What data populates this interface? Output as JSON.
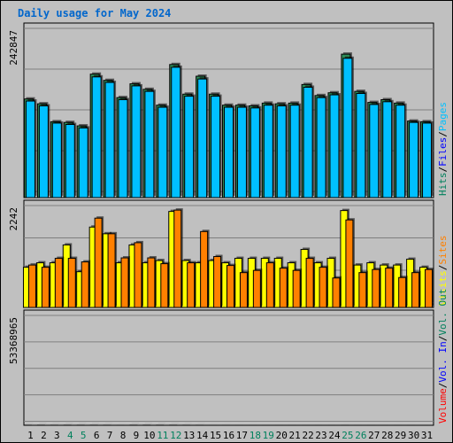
{
  "title": "Daily usage for May 2024",
  "colors": {
    "background": "#c0c0c0",
    "title": "#0066cc",
    "hits": "#00805c",
    "files": "#0000ff",
    "pages": "#00c0ff",
    "visits": "#ffff00",
    "sites": "#ff8000",
    "volume": "#ff0000",
    "weekend": "#00805c",
    "weekday": "#000000"
  },
  "chart_data": [
    {
      "type": "bar",
      "panel": "top",
      "max_label": "242847",
      "ylim": [
        0,
        242847
      ],
      "legend": [
        "Hits",
        "/",
        "Files",
        "/",
        "Pages"
      ],
      "x": [
        "1",
        "2",
        "3",
        "4",
        "5",
        "6",
        "7",
        "8",
        "9",
        "10",
        "11",
        "12",
        "13",
        "14",
        "15",
        "16",
        "17",
        "18",
        "19",
        "20",
        "21",
        "22",
        "23",
        "24",
        "25",
        "26",
        "27",
        "28",
        "29",
        "30",
        "31"
      ],
      "series": [
        {
          "name": "Hits",
          "values": [
            143000,
            136000,
            110000,
            109000,
            104000,
            179000,
            170000,
            145000,
            165000,
            157000,
            134000,
            193000,
            150000,
            176000,
            150000,
            134000,
            134000,
            133000,
            137000,
            136000,
            137000,
            164000,
            148000,
            152000,
            208000,
            154000,
            138000,
            142000,
            137000,
            111000,
            110000
          ]
        },
        {
          "name": "Files",
          "values": [
            140000,
            133000,
            108000,
            106000,
            101000,
            175000,
            167000,
            142000,
            162000,
            154000,
            131000,
            189000,
            147000,
            172000,
            147000,
            131000,
            131000,
            130000,
            134000,
            133000,
            134000,
            160000,
            145000,
            149000,
            202000,
            151000,
            135000,
            139000,
            134000,
            109000,
            108000
          ]
        }
      ]
    },
    {
      "type": "bar",
      "panel": "middle",
      "max_label": "2242",
      "ylim": [
        0,
        2242
      ],
      "legend": [
        "Visits",
        "/",
        "Sites"
      ],
      "x": [
        "1",
        "2",
        "3",
        "4",
        "5",
        "6",
        "7",
        "8",
        "9",
        "10",
        "11",
        "12",
        "13",
        "14",
        "15",
        "16",
        "17",
        "18",
        "19",
        "20",
        "21",
        "22",
        "23",
        "24",
        "25",
        "26",
        "27",
        "28",
        "29",
        "30",
        "31"
      ],
      "series": [
        {
          "name": "Visits",
          "values": [
            900,
            1000,
            1000,
            1400,
            800,
            1800,
            1650,
            1000,
            1400,
            1000,
            1050,
            2150,
            1050,
            1000,
            1050,
            1000,
            1100,
            1100,
            1100,
            1100,
            1000,
            1300,
            1000,
            1100,
            2170,
            950,
            1000,
            950,
            950,
            1080,
            900
          ]
        },
        {
          "name": "Sites",
          "values": [
            950,
            900,
            1100,
            1100,
            1020,
            2000,
            1650,
            1110,
            1450,
            1110,
            980,
            2180,
            1000,
            1700,
            1140,
            940,
            780,
            830,
            1000,
            880,
            830,
            1100,
            900,
            660,
            1960,
            780,
            850,
            880,
            670,
            780,
            850
          ]
        }
      ]
    },
    {
      "type": "bar",
      "panel": "bottom",
      "max_label": "53368965",
      "ylim": [
        0,
        53368965
      ],
      "legend": [
        "Volume",
        "/",
        "Vol. In",
        "/",
        "Vol. Out"
      ],
      "x": [
        "1",
        "2",
        "3",
        "4",
        "5",
        "6",
        "7",
        "8",
        "9",
        "10",
        "11",
        "12",
        "13",
        "14",
        "15",
        "16",
        "17",
        "18",
        "19",
        "20",
        "21",
        "22",
        "23",
        "24",
        "25",
        "26",
        "27",
        "28",
        "29",
        "30",
        "31"
      ],
      "series": [
        {
          "name": "Volume",
          "values": [
            41000,
            47500,
            35000,
            47000,
            40000,
            44500,
            35000,
            8200,
            51000,
            52500,
            49500,
            45500,
            29000,
            21500,
            5000,
            5800,
            3200,
            3000,
            1200,
            2200,
            1900,
            1900,
            1500,
            1500,
            7500,
            2500,
            2500,
            4300,
            3900,
            3900,
            2200
          ]
        }
      ]
    }
  ],
  "days": [
    {
      "label": "1",
      "weekend": false
    },
    {
      "label": "2",
      "weekend": false
    },
    {
      "label": "3",
      "weekend": false
    },
    {
      "label": "4",
      "weekend": true
    },
    {
      "label": "5",
      "weekend": true
    },
    {
      "label": "6",
      "weekend": false
    },
    {
      "label": "7",
      "weekend": false
    },
    {
      "label": "8",
      "weekend": false
    },
    {
      "label": "9",
      "weekend": false
    },
    {
      "label": "10",
      "weekend": false
    },
    {
      "label": "11",
      "weekend": true
    },
    {
      "label": "12",
      "weekend": true
    },
    {
      "label": "13",
      "weekend": false
    },
    {
      "label": "14",
      "weekend": false
    },
    {
      "label": "15",
      "weekend": false
    },
    {
      "label": "16",
      "weekend": false
    },
    {
      "label": "17",
      "weekend": false
    },
    {
      "label": "18",
      "weekend": true
    },
    {
      "label": "19",
      "weekend": true
    },
    {
      "label": "20",
      "weekend": false
    },
    {
      "label": "21",
      "weekend": false
    },
    {
      "label": "22",
      "weekend": false
    },
    {
      "label": "23",
      "weekend": false
    },
    {
      "label": "24",
      "weekend": false
    },
    {
      "label": "25",
      "weekend": true
    },
    {
      "label": "26",
      "weekend": true
    },
    {
      "label": "27",
      "weekend": false
    },
    {
      "label": "28",
      "weekend": false
    },
    {
      "label": "29",
      "weekend": false
    },
    {
      "label": "30",
      "weekend": false
    },
    {
      "label": "31",
      "weekend": false
    }
  ]
}
